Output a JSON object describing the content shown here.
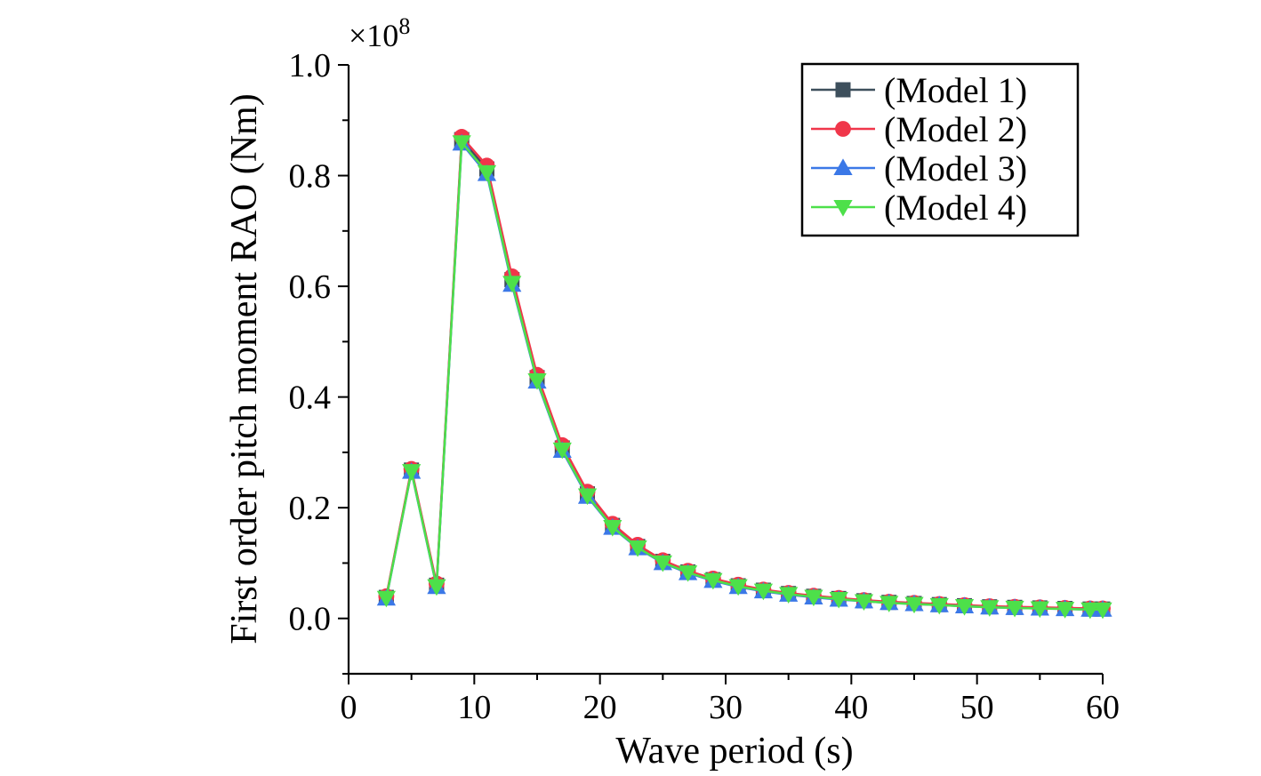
{
  "chart_data": {
    "type": "line",
    "title": "",
    "xlabel": "Wave period (s)",
    "ylabel": "First order pitch moment RAO (Nm)",
    "y_multiplier_base": "×10",
    "y_multiplier_exp": "8",
    "xlim": [
      0,
      60
    ],
    "ylim": [
      -0.1,
      1.0
    ],
    "x_ticks": [
      0,
      10,
      20,
      30,
      40,
      50,
      60
    ],
    "x_tick_labels": [
      "0",
      "10",
      "20",
      "30",
      "40",
      "50",
      "60"
    ],
    "y_ticks": [
      0.0,
      0.2,
      0.4,
      0.6,
      0.8,
      1.0
    ],
    "y_tick_labels": [
      "0.0",
      "0.2",
      "0.4",
      "0.6",
      "0.8",
      "1.0"
    ],
    "grid": false,
    "legend_position": "top-right",
    "x": [
      3,
      5,
      7,
      9,
      11,
      13,
      15,
      17,
      19,
      21,
      23,
      25,
      27,
      29,
      31,
      33,
      35,
      37,
      39,
      41,
      43,
      45,
      47,
      49,
      51,
      53,
      55,
      57,
      59,
      60
    ],
    "series": [
      {
        "name": "(Model 1)",
        "color": "#3d4f5c",
        "marker": "square",
        "values": [
          0.038,
          0.268,
          0.06,
          0.865,
          0.812,
          0.612,
          0.435,
          0.308,
          0.225,
          0.168,
          0.13,
          0.103,
          0.084,
          0.07,
          0.059,
          0.051,
          0.045,
          0.04,
          0.036,
          0.032,
          0.029,
          0.027,
          0.025,
          0.023,
          0.021,
          0.02,
          0.019,
          0.018,
          0.017,
          0.017
        ]
      },
      {
        "name": "(Model 2)",
        "color": "#f0364a",
        "marker": "circle",
        "values": [
          0.04,
          0.27,
          0.063,
          0.87,
          0.818,
          0.618,
          0.44,
          0.313,
          0.229,
          0.171,
          0.133,
          0.105,
          0.086,
          0.072,
          0.061,
          0.052,
          0.046,
          0.041,
          0.037,
          0.033,
          0.03,
          0.028,
          0.026,
          0.024,
          0.022,
          0.021,
          0.02,
          0.019,
          0.018,
          0.018
        ]
      },
      {
        "name": "(Model 3)",
        "color": "#3b78e7",
        "marker": "triangle-up",
        "values": [
          0.036,
          0.265,
          0.057,
          0.858,
          0.803,
          0.603,
          0.428,
          0.303,
          0.22,
          0.164,
          0.127,
          0.1,
          0.082,
          0.068,
          0.057,
          0.049,
          0.043,
          0.038,
          0.034,
          0.031,
          0.028,
          0.026,
          0.024,
          0.022,
          0.02,
          0.019,
          0.018,
          0.017,
          0.016,
          0.016
        ]
      },
      {
        "name": "(Model 4)",
        "color": "#4de04a",
        "marker": "triangle-down",
        "values": [
          0.037,
          0.266,
          0.058,
          0.86,
          0.806,
          0.606,
          0.43,
          0.305,
          0.222,
          0.165,
          0.128,
          0.101,
          0.083,
          0.069,
          0.058,
          0.05,
          0.044,
          0.039,
          0.035,
          0.031,
          0.028,
          0.026,
          0.024,
          0.022,
          0.02,
          0.019,
          0.018,
          0.017,
          0.016,
          0.016
        ]
      }
    ]
  }
}
